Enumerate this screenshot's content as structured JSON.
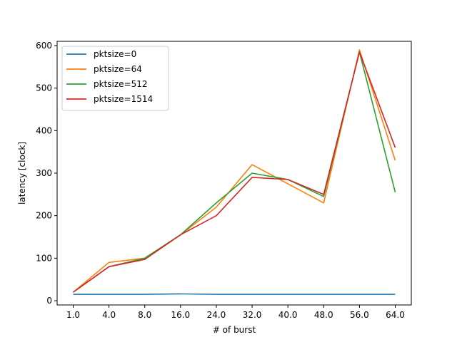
{
  "chart_data": {
    "type": "line",
    "title": "",
    "xlabel": "# of burst",
    "ylabel": "latency [clock]",
    "categories": [
      "1.0",
      "4.0",
      "8.0",
      "16.0",
      "24.0",
      "32.0",
      "40.0",
      "48.0",
      "56.0",
      "64.0"
    ],
    "ylim": [
      -10,
      610
    ],
    "yticks": [
      0,
      100,
      200,
      300,
      400,
      500,
      600
    ],
    "grid": false,
    "legend_position": "top-left",
    "series": [
      {
        "name": "pktsize=0",
        "color": "#1f77b4",
        "values": [
          15,
          15,
          15,
          16,
          15,
          15,
          15,
          15,
          15,
          15
        ]
      },
      {
        "name": "pktsize=64",
        "color": "#ff7f0e",
        "values": [
          20,
          90,
          100,
          155,
          220,
          320,
          275,
          230,
          590,
          330
        ]
      },
      {
        "name": "pktsize=512",
        "color": "#2ca02c",
        "values": [
          20,
          80,
          100,
          155,
          230,
          300,
          285,
          245,
          585,
          255
        ]
      },
      {
        "name": "pktsize=1514",
        "color": "#d62728",
        "values": [
          20,
          80,
          97,
          155,
          200,
          290,
          285,
          250,
          585,
          360
        ]
      }
    ]
  }
}
